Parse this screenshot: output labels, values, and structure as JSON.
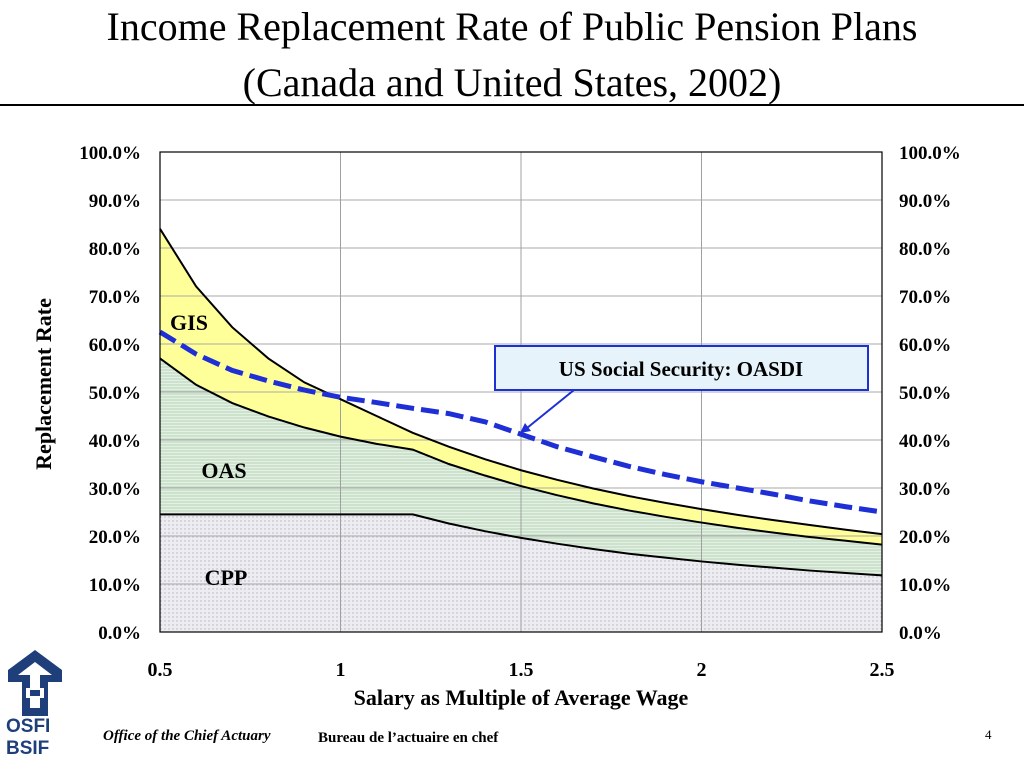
{
  "title_line1": "Income Replacement Rate of Public Pension Plans",
  "title_line2": "(Canada and United States, 2002)",
  "footer": {
    "office_en": "Office of the Chief Actuary",
    "office_fr": "Bureau de l’actuaire en chef",
    "page": "4",
    "logo_top": "OSFI",
    "logo_bottom": "BSIF"
  },
  "colors": {
    "cpp_fill": "#e6e6ec",
    "oas_fill": "#dcebdc",
    "gis_fill": "#ffff99",
    "us_line": "#1f2fd6",
    "logo": "#1f3f7a"
  },
  "chart_data": {
    "type": "area",
    "xlabel": "Salary as Multiple of Average Wage",
    "ylabel": "Replacement Rate",
    "xlim": [
      0.5,
      2.5
    ],
    "ylim": [
      0,
      100
    ],
    "x_ticks": [
      "0.5",
      "1",
      "1.5",
      "2",
      "2.5"
    ],
    "y_ticks": [
      "0.0%",
      "10.0%",
      "20.0%",
      "30.0%",
      "40.0%",
      "50.0%",
      "60.0%",
      "70.0%",
      "80.0%",
      "90.0%",
      "100.0%"
    ],
    "grid": true,
    "x": [
      0.5,
      0.6,
      0.7,
      0.8,
      0.9,
      1.0,
      1.1,
      1.2,
      1.3,
      1.4,
      1.5,
      1.6,
      1.7,
      1.8,
      1.9,
      2.0,
      2.1,
      2.2,
      2.3,
      2.4,
      2.5
    ],
    "series": [
      {
        "name": "CPP",
        "cumulative": [
          24.5,
          24.5,
          24.5,
          24.5,
          24.5,
          24.5,
          24.5,
          24.5,
          22.6,
          21.0,
          19.6,
          18.4,
          17.3,
          16.3,
          15.5,
          14.7,
          14.0,
          13.4,
          12.8,
          12.3,
          11.8
        ]
      },
      {
        "name": "OAS",
        "cumulative": [
          57.0,
          51.5,
          47.7,
          44.9,
          42.6,
          40.7,
          39.2,
          38.0,
          35.0,
          32.6,
          30.4,
          28.5,
          26.8,
          25.3,
          24.0,
          22.8,
          21.7,
          20.7,
          19.8,
          19.0,
          18.2
        ]
      },
      {
        "name": "GIS",
        "cumulative": [
          84.0,
          72.0,
          63.5,
          57.0,
          52.0,
          48.5,
          45.0,
          41.5,
          38.6,
          36.0,
          33.7,
          31.7,
          29.9,
          28.3,
          26.9,
          25.6,
          24.4,
          23.3,
          22.3,
          21.3,
          20.4
        ]
      },
      {
        "name": "US Social Security:  OASDI",
        "values": [
          62.5,
          57.9,
          54.5,
          52.3,
          50.4,
          48.9,
          47.8,
          46.6,
          45.5,
          43.8,
          41.2,
          38.6,
          36.5,
          34.5,
          32.8,
          31.3,
          30.0,
          28.7,
          27.3,
          26.1,
          25.0
        ]
      }
    ],
    "area_labels": [
      "CPP",
      "OAS",
      "GIS"
    ]
  }
}
